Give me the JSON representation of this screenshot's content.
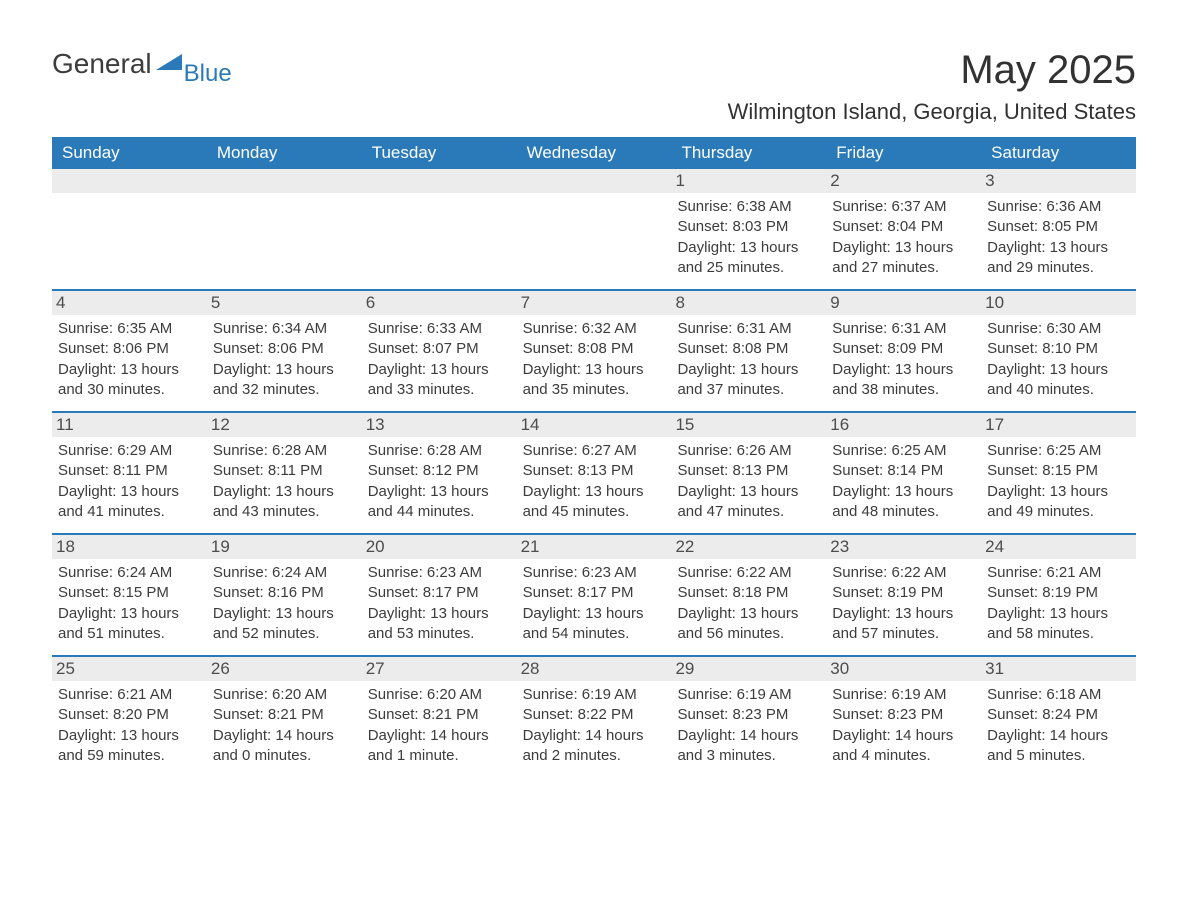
{
  "logo": {
    "text1": "General",
    "text2": "Blue"
  },
  "title": "May 2025",
  "location": "Wilmington Island, Georgia, United States",
  "colors": {
    "header_bg": "#2a7ab9",
    "header_text": "#ffffff",
    "daynum_bg": "#ececec",
    "body_text": "#3c3c3c",
    "page_bg": "#ffffff",
    "row_border": "#2a7ab9"
  },
  "fonts": {
    "title_size_pt": 30,
    "location_size_pt": 17,
    "weekday_size_pt": 13,
    "body_size_pt": 11
  },
  "weekdays": [
    "Sunday",
    "Monday",
    "Tuesday",
    "Wednesday",
    "Thursday",
    "Friday",
    "Saturday"
  ],
  "weeks": [
    [
      {
        "empty": true
      },
      {
        "empty": true
      },
      {
        "empty": true
      },
      {
        "empty": true
      },
      {
        "day": "1",
        "sunrise": "Sunrise: 6:38 AM",
        "sunset": "Sunset: 8:03 PM",
        "daylight1": "Daylight: 13 hours",
        "daylight2": "and 25 minutes."
      },
      {
        "day": "2",
        "sunrise": "Sunrise: 6:37 AM",
        "sunset": "Sunset: 8:04 PM",
        "daylight1": "Daylight: 13 hours",
        "daylight2": "and 27 minutes."
      },
      {
        "day": "3",
        "sunrise": "Sunrise: 6:36 AM",
        "sunset": "Sunset: 8:05 PM",
        "daylight1": "Daylight: 13 hours",
        "daylight2": "and 29 minutes."
      }
    ],
    [
      {
        "day": "4",
        "sunrise": "Sunrise: 6:35 AM",
        "sunset": "Sunset: 8:06 PM",
        "daylight1": "Daylight: 13 hours",
        "daylight2": "and 30 minutes."
      },
      {
        "day": "5",
        "sunrise": "Sunrise: 6:34 AM",
        "sunset": "Sunset: 8:06 PM",
        "daylight1": "Daylight: 13 hours",
        "daylight2": "and 32 minutes."
      },
      {
        "day": "6",
        "sunrise": "Sunrise: 6:33 AM",
        "sunset": "Sunset: 8:07 PM",
        "daylight1": "Daylight: 13 hours",
        "daylight2": "and 33 minutes."
      },
      {
        "day": "7",
        "sunrise": "Sunrise: 6:32 AM",
        "sunset": "Sunset: 8:08 PM",
        "daylight1": "Daylight: 13 hours",
        "daylight2": "and 35 minutes."
      },
      {
        "day": "8",
        "sunrise": "Sunrise: 6:31 AM",
        "sunset": "Sunset: 8:08 PM",
        "daylight1": "Daylight: 13 hours",
        "daylight2": "and 37 minutes."
      },
      {
        "day": "9",
        "sunrise": "Sunrise: 6:31 AM",
        "sunset": "Sunset: 8:09 PM",
        "daylight1": "Daylight: 13 hours",
        "daylight2": "and 38 minutes."
      },
      {
        "day": "10",
        "sunrise": "Sunrise: 6:30 AM",
        "sunset": "Sunset: 8:10 PM",
        "daylight1": "Daylight: 13 hours",
        "daylight2": "and 40 minutes."
      }
    ],
    [
      {
        "day": "11",
        "sunrise": "Sunrise: 6:29 AM",
        "sunset": "Sunset: 8:11 PM",
        "daylight1": "Daylight: 13 hours",
        "daylight2": "and 41 minutes."
      },
      {
        "day": "12",
        "sunrise": "Sunrise: 6:28 AM",
        "sunset": "Sunset: 8:11 PM",
        "daylight1": "Daylight: 13 hours",
        "daylight2": "and 43 minutes."
      },
      {
        "day": "13",
        "sunrise": "Sunrise: 6:28 AM",
        "sunset": "Sunset: 8:12 PM",
        "daylight1": "Daylight: 13 hours",
        "daylight2": "and 44 minutes."
      },
      {
        "day": "14",
        "sunrise": "Sunrise: 6:27 AM",
        "sunset": "Sunset: 8:13 PM",
        "daylight1": "Daylight: 13 hours",
        "daylight2": "and 45 minutes."
      },
      {
        "day": "15",
        "sunrise": "Sunrise: 6:26 AM",
        "sunset": "Sunset: 8:13 PM",
        "daylight1": "Daylight: 13 hours",
        "daylight2": "and 47 minutes."
      },
      {
        "day": "16",
        "sunrise": "Sunrise: 6:25 AM",
        "sunset": "Sunset: 8:14 PM",
        "daylight1": "Daylight: 13 hours",
        "daylight2": "and 48 minutes."
      },
      {
        "day": "17",
        "sunrise": "Sunrise: 6:25 AM",
        "sunset": "Sunset: 8:15 PM",
        "daylight1": "Daylight: 13 hours",
        "daylight2": "and 49 minutes."
      }
    ],
    [
      {
        "day": "18",
        "sunrise": "Sunrise: 6:24 AM",
        "sunset": "Sunset: 8:15 PM",
        "daylight1": "Daylight: 13 hours",
        "daylight2": "and 51 minutes."
      },
      {
        "day": "19",
        "sunrise": "Sunrise: 6:24 AM",
        "sunset": "Sunset: 8:16 PM",
        "daylight1": "Daylight: 13 hours",
        "daylight2": "and 52 minutes."
      },
      {
        "day": "20",
        "sunrise": "Sunrise: 6:23 AM",
        "sunset": "Sunset: 8:17 PM",
        "daylight1": "Daylight: 13 hours",
        "daylight2": "and 53 minutes."
      },
      {
        "day": "21",
        "sunrise": "Sunrise: 6:23 AM",
        "sunset": "Sunset: 8:17 PM",
        "daylight1": "Daylight: 13 hours",
        "daylight2": "and 54 minutes."
      },
      {
        "day": "22",
        "sunrise": "Sunrise: 6:22 AM",
        "sunset": "Sunset: 8:18 PM",
        "daylight1": "Daylight: 13 hours",
        "daylight2": "and 56 minutes."
      },
      {
        "day": "23",
        "sunrise": "Sunrise: 6:22 AM",
        "sunset": "Sunset: 8:19 PM",
        "daylight1": "Daylight: 13 hours",
        "daylight2": "and 57 minutes."
      },
      {
        "day": "24",
        "sunrise": "Sunrise: 6:21 AM",
        "sunset": "Sunset: 8:19 PM",
        "daylight1": "Daylight: 13 hours",
        "daylight2": "and 58 minutes."
      }
    ],
    [
      {
        "day": "25",
        "sunrise": "Sunrise: 6:21 AM",
        "sunset": "Sunset: 8:20 PM",
        "daylight1": "Daylight: 13 hours",
        "daylight2": "and 59 minutes."
      },
      {
        "day": "26",
        "sunrise": "Sunrise: 6:20 AM",
        "sunset": "Sunset: 8:21 PM",
        "daylight1": "Daylight: 14 hours",
        "daylight2": "and 0 minutes."
      },
      {
        "day": "27",
        "sunrise": "Sunrise: 6:20 AM",
        "sunset": "Sunset: 8:21 PM",
        "daylight1": "Daylight: 14 hours",
        "daylight2": "and 1 minute."
      },
      {
        "day": "28",
        "sunrise": "Sunrise: 6:19 AM",
        "sunset": "Sunset: 8:22 PM",
        "daylight1": "Daylight: 14 hours",
        "daylight2": "and 2 minutes."
      },
      {
        "day": "29",
        "sunrise": "Sunrise: 6:19 AM",
        "sunset": "Sunset: 8:23 PM",
        "daylight1": "Daylight: 14 hours",
        "daylight2": "and 3 minutes."
      },
      {
        "day": "30",
        "sunrise": "Sunrise: 6:19 AM",
        "sunset": "Sunset: 8:23 PM",
        "daylight1": "Daylight: 14 hours",
        "daylight2": "and 4 minutes."
      },
      {
        "day": "31",
        "sunrise": "Sunrise: 6:18 AM",
        "sunset": "Sunset: 8:24 PM",
        "daylight1": "Daylight: 14 hours",
        "daylight2": "and 5 minutes."
      }
    ]
  ]
}
